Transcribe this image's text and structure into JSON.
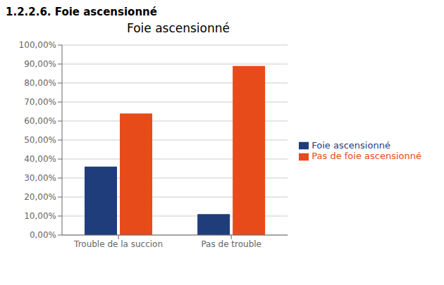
{
  "chart_data": {
    "type": "bar",
    "title": "Foie ascensionné",
    "subtitle": "1.2.2.6. Foie ascensionné",
    "categories": [
      "Trouble de la succion",
      "Pas de trouble"
    ],
    "series": [
      {
        "name": "Foie ascensionné",
        "color": "#1F3D7A",
        "values": [
          0.36,
          0.11
        ]
      },
      {
        "name": "Pas de foie ascensionné",
        "color": "#E84B1A",
        "values": [
          0.64,
          0.89
        ]
      }
    ],
    "ylim": [
      0,
      1.0
    ],
    "yticks": [
      {
        "value": 0.0,
        "label": "0,00%"
      },
      {
        "value": 0.1,
        "label": "10,00%"
      },
      {
        "value": 0.2,
        "label": "20,00%"
      },
      {
        "value": 0.3,
        "label": "30,00%"
      },
      {
        "value": 0.4,
        "label": "40,00%"
      },
      {
        "value": 0.5,
        "label": "50,00%"
      },
      {
        "value": 0.6,
        "label": "60,00%"
      },
      {
        "value": 0.7,
        "label": "70,00%"
      },
      {
        "value": 0.8,
        "label": "80,00%"
      },
      {
        "value": 0.9,
        "label": "90,00%"
      },
      {
        "value": 1.0,
        "label": "100,00%"
      }
    ],
    "grid": true,
    "legend": "right"
  }
}
